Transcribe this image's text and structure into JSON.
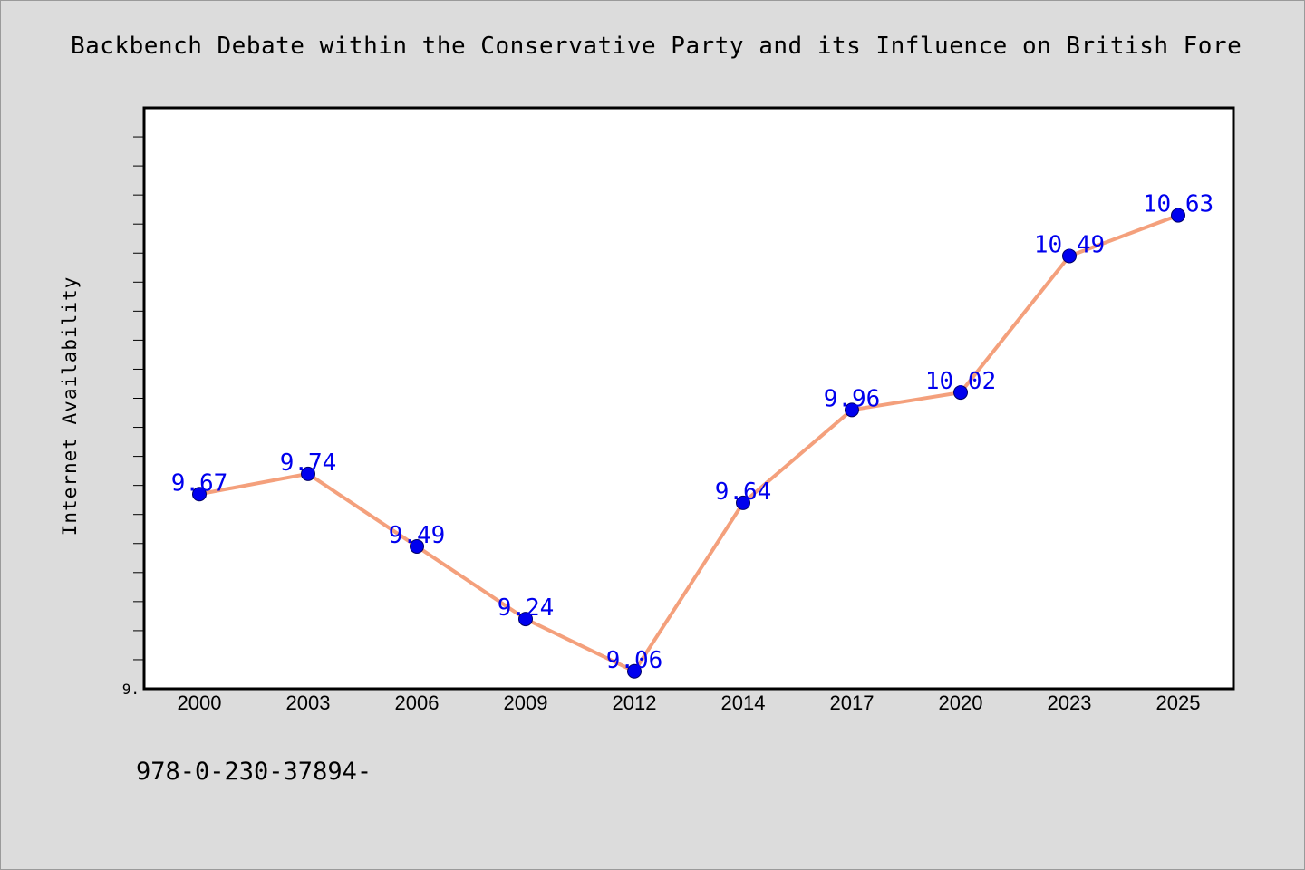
{
  "chart_data": {
    "type": "line",
    "title": "Backbench Debate within the Conservative Party and its Influence on British Fore",
    "xlabel": "",
    "ylabel": "Internet Availability",
    "categories": [
      "2000",
      "2003",
      "2006",
      "2009",
      "2012",
      "2014",
      "2017",
      "2020",
      "2023",
      "2025"
    ],
    "series": [
      {
        "values": [
          9.67,
          9.74,
          9.49,
          9.24,
          9.06,
          9.64,
          9.96,
          10.02,
          10.49,
          10.63
        ],
        "data_labels": [
          "9.67",
          "9.74",
          "9.49",
          "9.24",
          "9.06",
          "9.64",
          "9.96",
          "10.02",
          "10.49",
          "10.63"
        ],
        "line_color": "#f4a07c",
        "marker_color": "#0000ee",
        "label_color": "#0000ee"
      }
    ],
    "y_tick_label": "9.",
    "ylim": [
      9.0,
      11.0
    ],
    "grid": false,
    "legend": "none"
  },
  "footer": {
    "code": "978-0-230-37894-"
  }
}
